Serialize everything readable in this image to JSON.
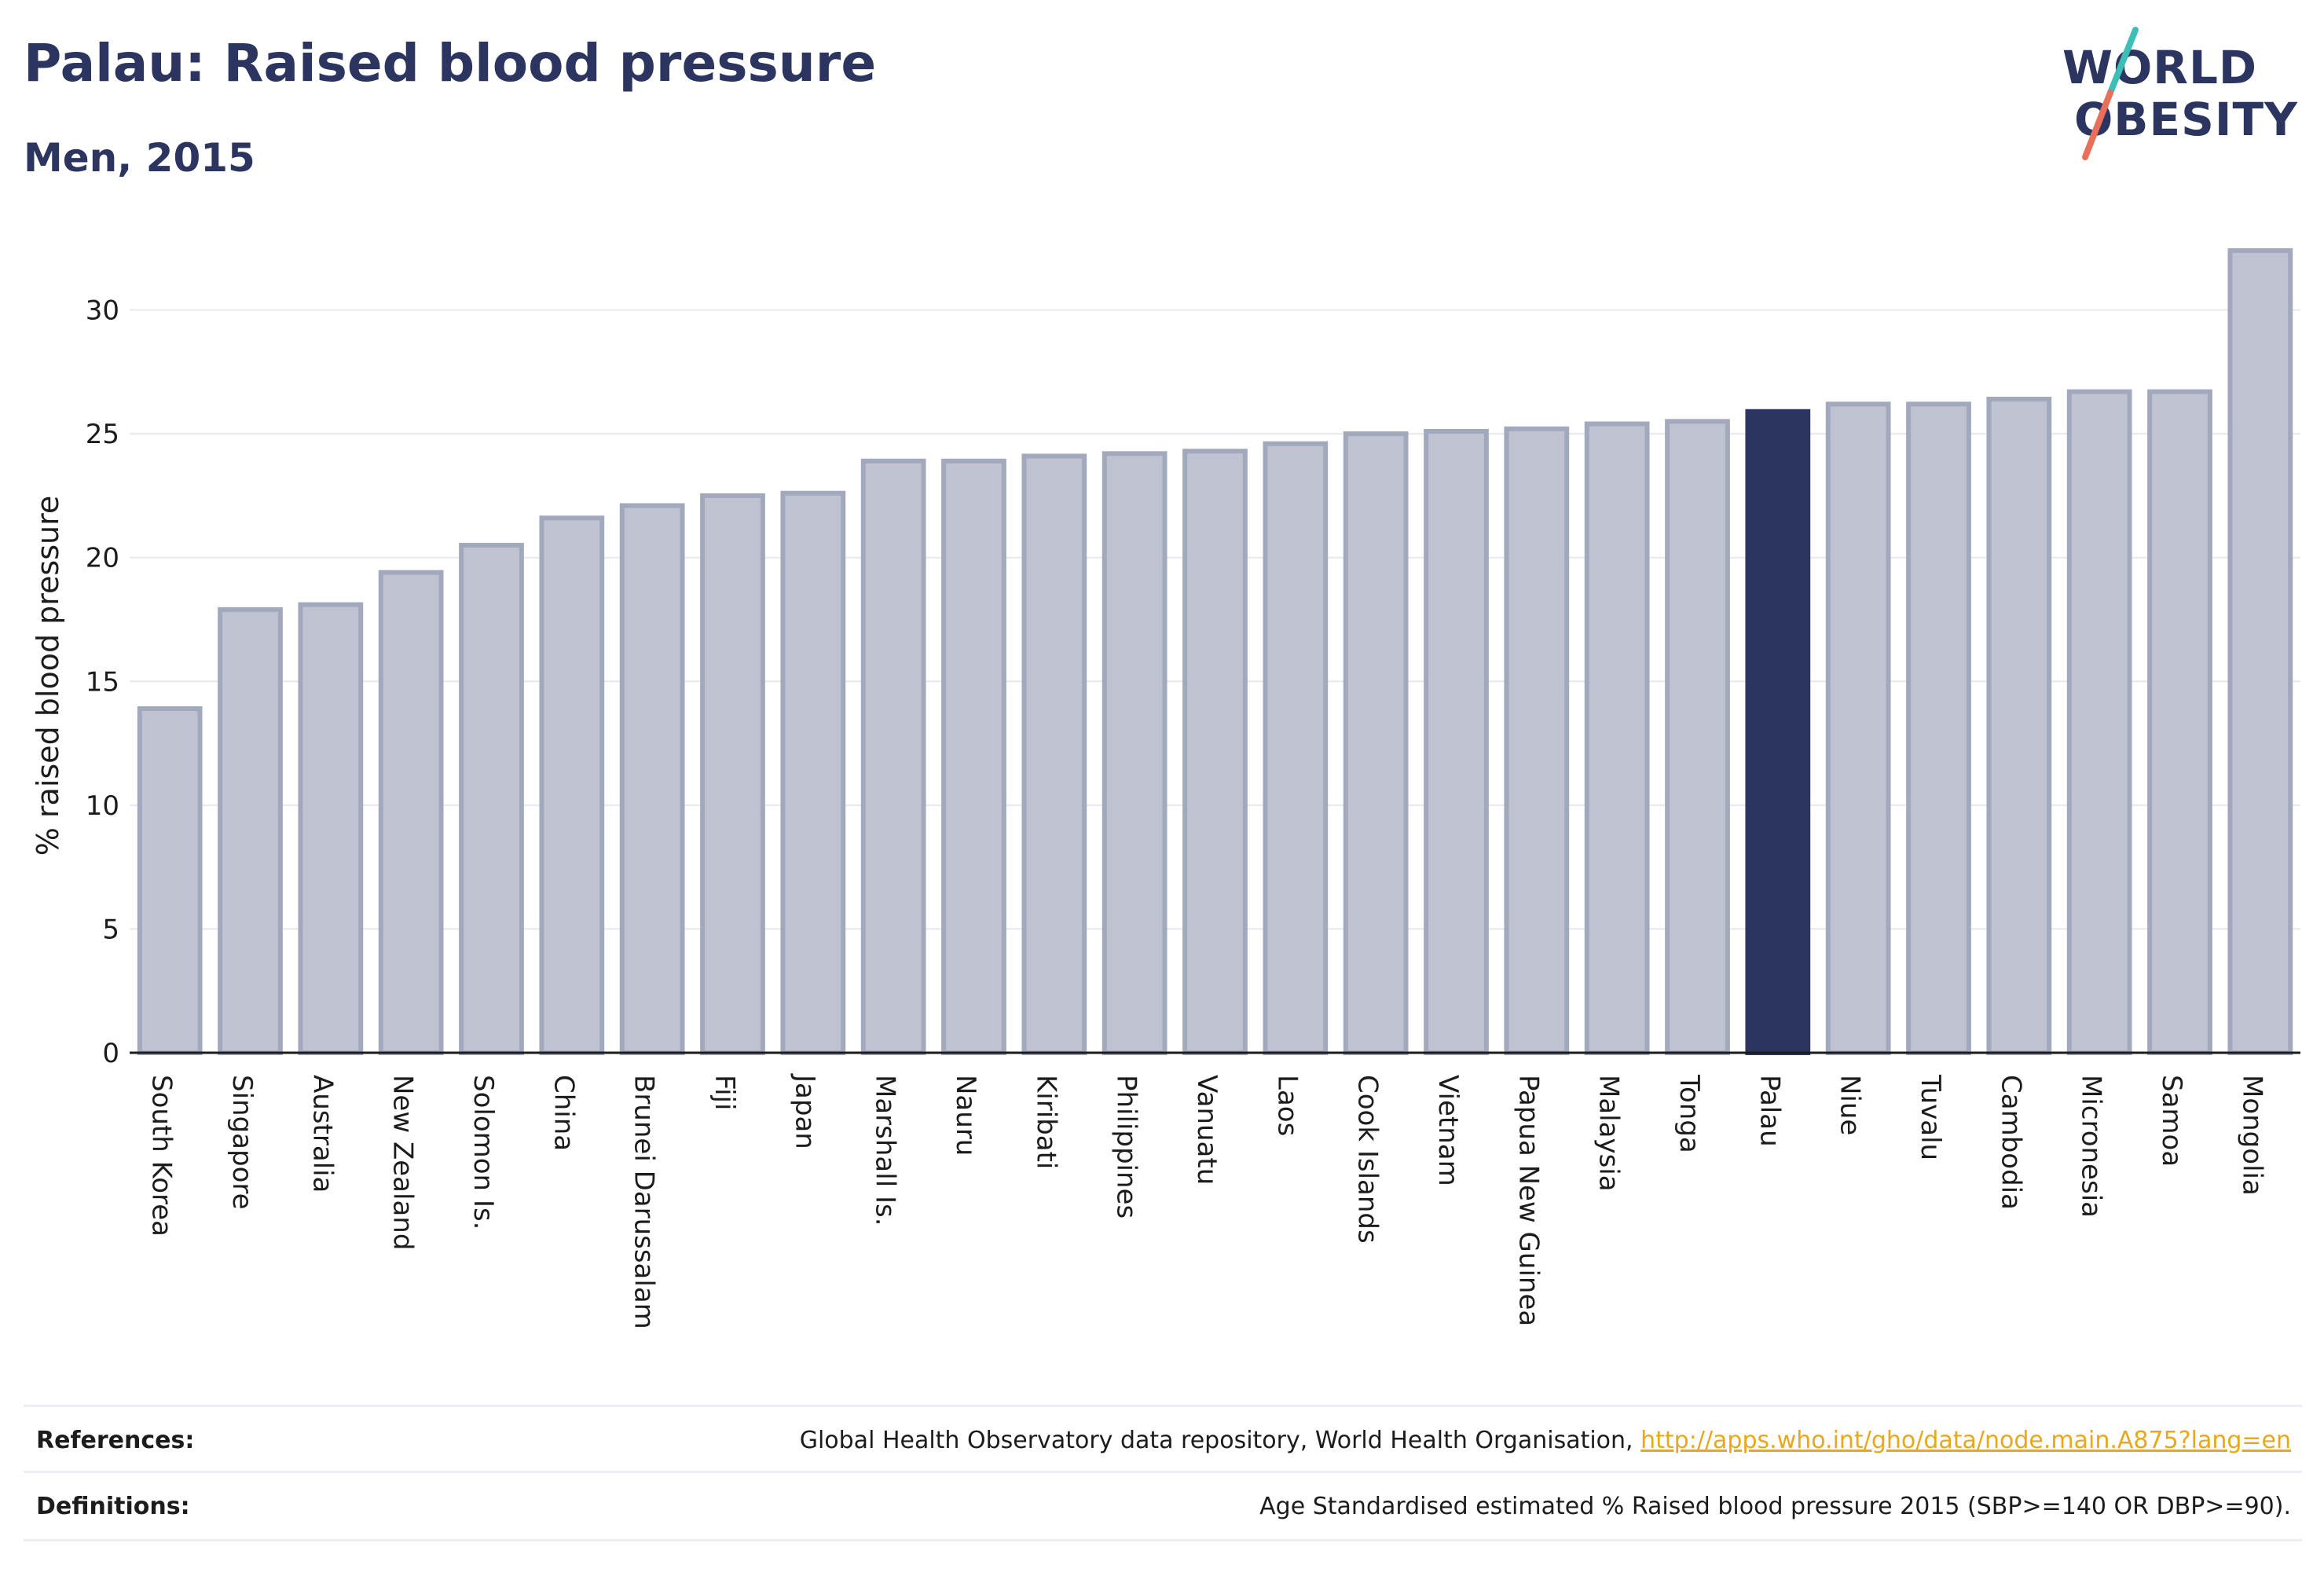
{
  "header": {
    "title": "Palau: Raised blood pressure",
    "subtitle": "Men, 2015"
  },
  "logo": {
    "line1": "WORLD",
    "line2": "OBESITY",
    "accent_teal": "#3bbfb7",
    "accent_coral": "#e8705a"
  },
  "colors": {
    "bar_default": "#bfc3d1",
    "bar_default_border": "#a3a9bd",
    "bar_highlight": "#2b3560",
    "text_dark": "#2b3560"
  },
  "chart_data": {
    "type": "bar",
    "ylabel": "% raised blood pressure",
    "ylim": [
      0,
      33
    ],
    "yticks": [
      0,
      5,
      10,
      15,
      20,
      25,
      30
    ],
    "grid": true,
    "highlight": "Palau",
    "categories": [
      "South Korea",
      "Singapore",
      "Australia",
      "New Zealand",
      "Solomon Is.",
      "China",
      "Brunei Darussalam",
      "Fiji",
      "Japan",
      "Marshall Is.",
      "Nauru",
      "Kiribati",
      "Philippines",
      "Vanuatu",
      "Laos",
      "Cook Islands",
      "Vietnam",
      "Papua New Guinea",
      "Malaysia",
      "Tonga",
      "Palau",
      "Niue",
      "Tuvalu",
      "Cambodia",
      "Micronesia",
      "Samoa",
      "Mongolia"
    ],
    "values": [
      13.9,
      17.9,
      18.1,
      19.4,
      20.5,
      21.6,
      22.1,
      22.5,
      22.6,
      23.9,
      23.9,
      24.1,
      24.2,
      24.3,
      24.6,
      25.0,
      25.1,
      25.2,
      25.4,
      25.5,
      25.9,
      26.2,
      26.2,
      26.4,
      26.7,
      26.7,
      32.4
    ]
  },
  "footer": {
    "references_label": "References:",
    "references_text": "Global Health Observatory data repository, World Health Organisation,",
    "references_link": "http://apps.who.int/gho/data/node.main.A875?lang=en",
    "definitions_label": "Definitions:",
    "definitions_text": "Age Standardised estimated % Raised blood pressure 2015 (SBP>=140 OR DBP>=90)."
  }
}
